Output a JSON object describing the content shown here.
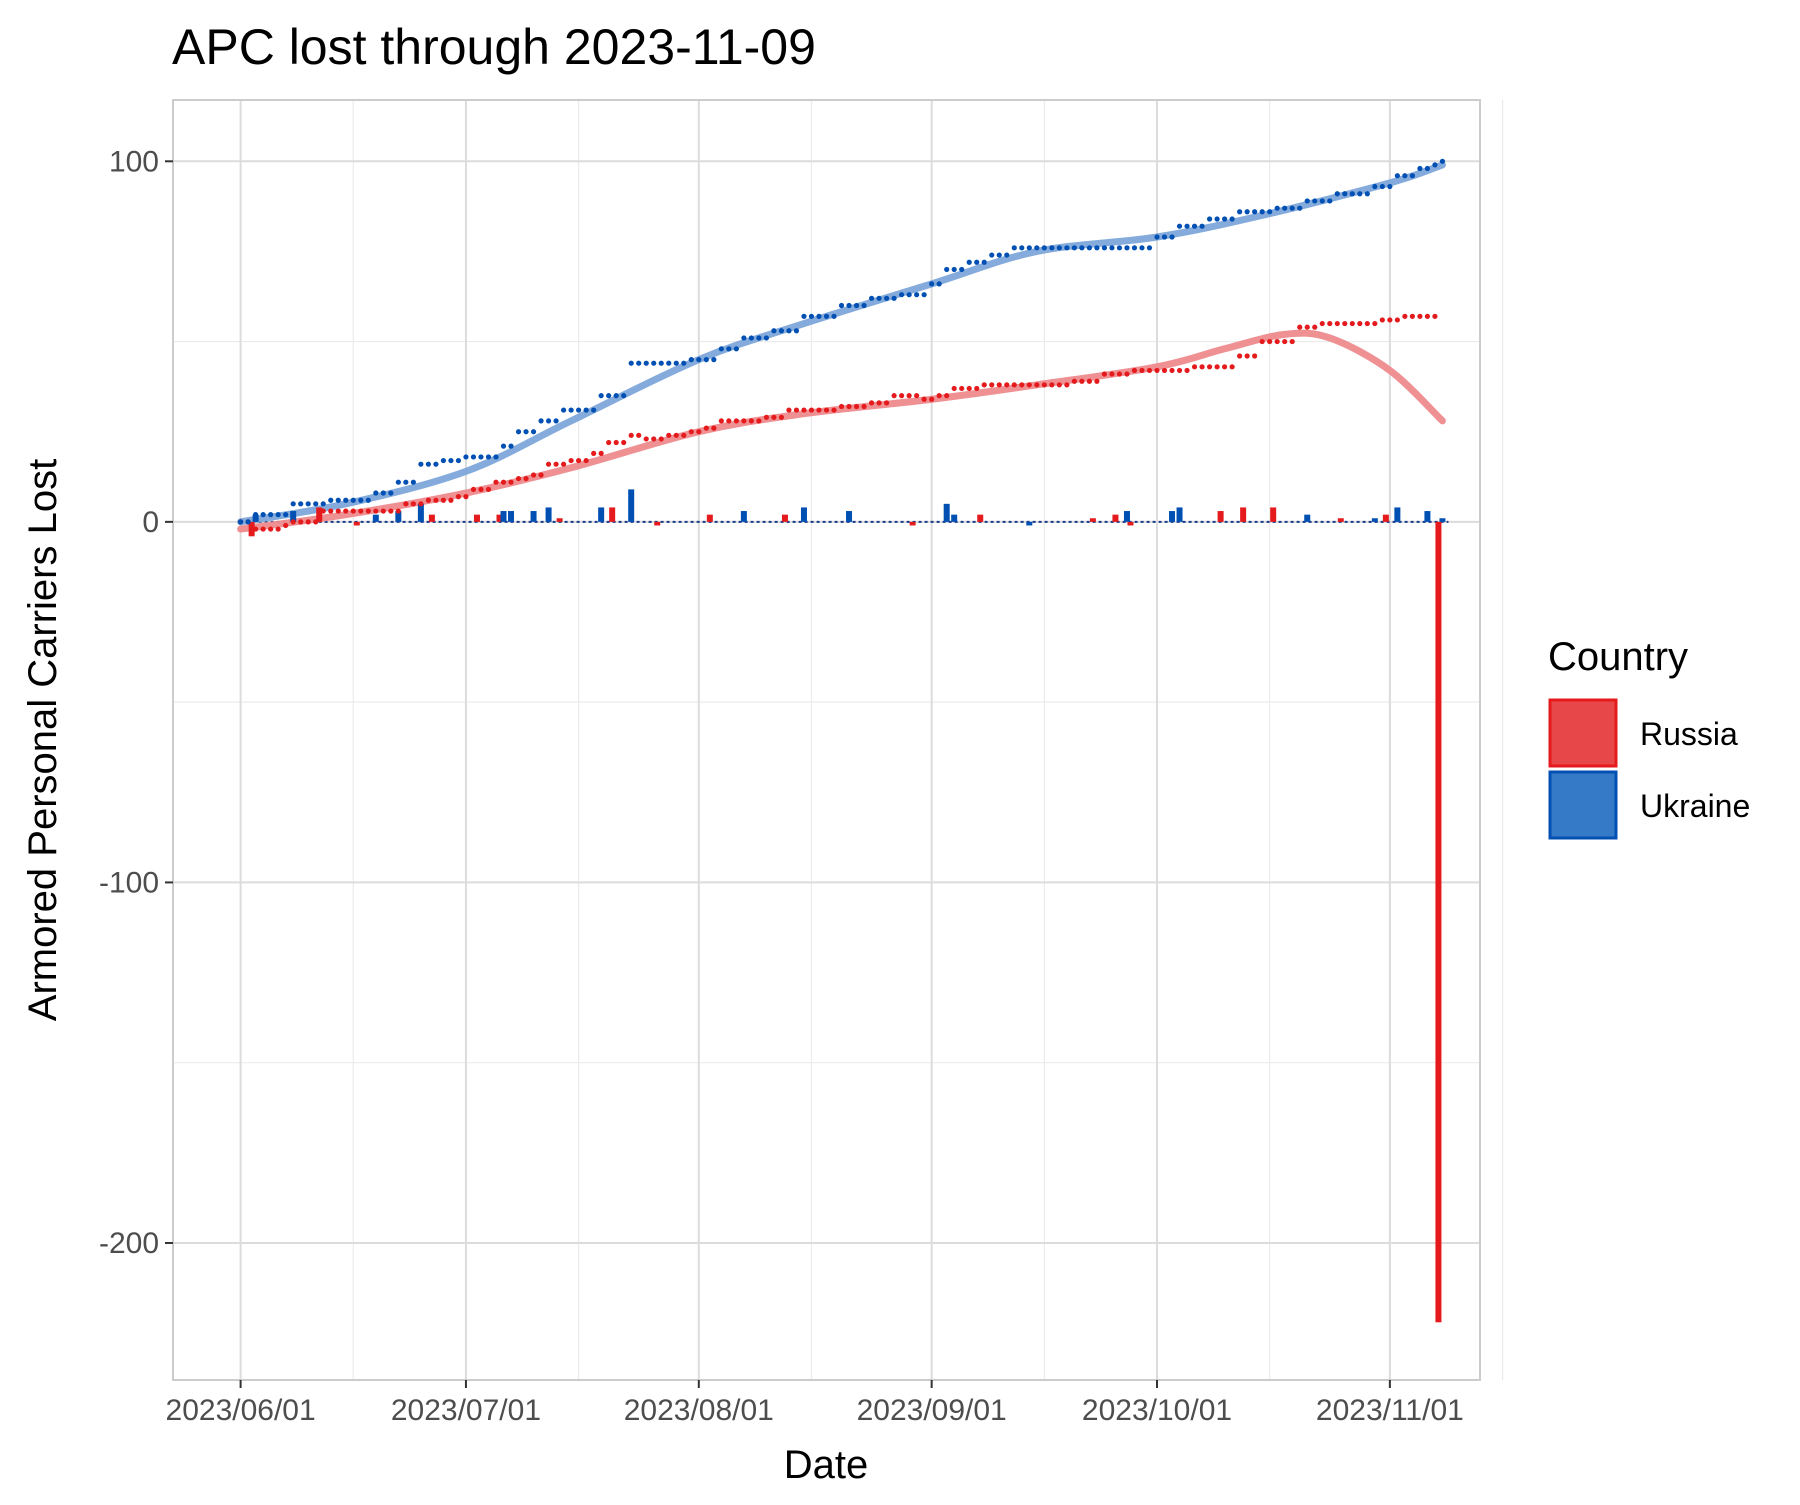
{
  "chart_data": {
    "type": "line",
    "title": "APC lost through 2023-11-09",
    "xlabel": "Date",
    "ylabel": "Armored Personal Carriers Lost",
    "x_tick_labels": [
      "2023/06/01",
      "2023/07/01",
      "2023/08/01",
      "2023/09/01",
      "2023/10/01",
      "2023/11/01"
    ],
    "y_tick_labels": [
      "100",
      "0",
      "-100",
      "-200"
    ],
    "x_range": [
      "2023-05-23",
      "2023-11-13"
    ],
    "ylim": [
      -238,
      117
    ],
    "grid": true,
    "legend": {
      "title": "Country",
      "position": "right",
      "entries": [
        {
          "name": "Russia",
          "color": "#e41a1c"
        },
        {
          "name": "Ukraine",
          "color": "#0050b4"
        }
      ]
    },
    "series": [
      {
        "name": "Russia",
        "color": "#e41a1c",
        "cumulative": [
          [
            "2023-06-01",
            0
          ],
          [
            "2023-06-03",
            -2
          ],
          [
            "2023-06-04",
            -2
          ],
          [
            "2023-06-05",
            -2
          ],
          [
            "2023-06-07",
            -1
          ],
          [
            "2023-06-08",
            0
          ],
          [
            "2023-06-12",
            3
          ],
          [
            "2023-06-15",
            3
          ],
          [
            "2023-06-20",
            3
          ],
          [
            "2023-06-23",
            5
          ],
          [
            "2023-06-26",
            6
          ],
          [
            "2023-06-30",
            7
          ],
          [
            "2023-07-02",
            9
          ],
          [
            "2023-07-04",
            9
          ],
          [
            "2023-07-05",
            11
          ],
          [
            "2023-07-08",
            12
          ],
          [
            "2023-07-10",
            13
          ],
          [
            "2023-07-12",
            16
          ],
          [
            "2023-07-15",
            17
          ],
          [
            "2023-07-18",
            19
          ],
          [
            "2023-07-20",
            22
          ],
          [
            "2023-07-23",
            24
          ],
          [
            "2023-07-25",
            23
          ],
          [
            "2023-07-28",
            24
          ],
          [
            "2023-07-31",
            25
          ],
          [
            "2023-08-02",
            26
          ],
          [
            "2023-08-04",
            28
          ],
          [
            "2023-08-07",
            28
          ],
          [
            "2023-08-10",
            29
          ],
          [
            "2023-08-13",
            31
          ],
          [
            "2023-08-16",
            31
          ],
          [
            "2023-08-20",
            32
          ],
          [
            "2023-08-24",
            33
          ],
          [
            "2023-08-27",
            35
          ],
          [
            "2023-08-31",
            34
          ],
          [
            "2023-09-02",
            35
          ],
          [
            "2023-09-04",
            37
          ],
          [
            "2023-09-08",
            38
          ],
          [
            "2023-09-12",
            38
          ],
          [
            "2023-09-16",
            38
          ],
          [
            "2023-09-20",
            39
          ],
          [
            "2023-09-24",
            41
          ],
          [
            "2023-09-28",
            42
          ],
          [
            "2023-10-03",
            42
          ],
          [
            "2023-10-06",
            43
          ],
          [
            "2023-10-09",
            43
          ],
          [
            "2023-10-12",
            46
          ],
          [
            "2023-10-15",
            50
          ],
          [
            "2023-10-18",
            50
          ],
          [
            "2023-10-20",
            54
          ],
          [
            "2023-10-23",
            55
          ],
          [
            "2023-10-27",
            55
          ],
          [
            "2023-10-31",
            56
          ],
          [
            "2023-11-03",
            57
          ],
          [
            "2023-11-07",
            57
          ]
        ],
        "daily": [
          [
            "2023-06-03",
            -4
          ],
          [
            "2023-06-12",
            4
          ],
          [
            "2023-06-17",
            -1
          ],
          [
            "2023-06-27",
            2
          ],
          [
            "2023-07-03",
            2
          ],
          [
            "2023-07-06",
            2
          ],
          [
            "2023-07-14",
            1
          ],
          [
            "2023-07-21",
            4
          ],
          [
            "2023-07-27",
            -1
          ],
          [
            "2023-08-03",
            2
          ],
          [
            "2023-08-13",
            2
          ],
          [
            "2023-08-30",
            -1
          ],
          [
            "2023-09-08",
            2
          ],
          [
            "2023-09-23",
            1
          ],
          [
            "2023-09-26",
            2
          ],
          [
            "2023-09-28",
            -1
          ],
          [
            "2023-10-10",
            3
          ],
          [
            "2023-10-13",
            4
          ],
          [
            "2023-10-17",
            4
          ],
          [
            "2023-10-26",
            1
          ],
          [
            "2023-11-01",
            2
          ],
          [
            "2023-11-08",
            -222
          ]
        ],
        "smooth": [
          [
            "2023-06-01",
            -2
          ],
          [
            "2023-06-15",
            2
          ],
          [
            "2023-07-01",
            8
          ],
          [
            "2023-07-15",
            15
          ],
          [
            "2023-08-01",
            25
          ],
          [
            "2023-08-15",
            30
          ],
          [
            "2023-09-01",
            34
          ],
          [
            "2023-09-15",
            38
          ],
          [
            "2023-10-01",
            43
          ],
          [
            "2023-10-10",
            48
          ],
          [
            "2023-10-18",
            52
          ],
          [
            "2023-10-24",
            51
          ],
          [
            "2023-11-01",
            42
          ],
          [
            "2023-11-08",
            28
          ]
        ]
      },
      {
        "name": "Ukraine",
        "color": "#0050b4",
        "cumulative": [
          [
            "2023-06-01",
            0
          ],
          [
            "2023-06-03",
            2
          ],
          [
            "2023-06-06",
            2
          ],
          [
            "2023-06-08",
            5
          ],
          [
            "2023-06-10",
            5
          ],
          [
            "2023-06-13",
            6
          ],
          [
            "2023-06-16",
            6
          ],
          [
            "2023-06-19",
            8
          ],
          [
            "2023-06-22",
            11
          ],
          [
            "2023-06-25",
            16
          ],
          [
            "2023-06-28",
            17
          ],
          [
            "2023-07-01",
            18
          ],
          [
            "2023-07-04",
            18
          ],
          [
            "2023-07-06",
            21
          ],
          [
            "2023-07-08",
            25
          ],
          [
            "2023-07-11",
            28
          ],
          [
            "2023-07-14",
            31
          ],
          [
            "2023-07-19",
            35
          ],
          [
            "2023-07-23",
            44
          ],
          [
            "2023-07-27",
            44
          ],
          [
            "2023-07-31",
            45
          ],
          [
            "2023-08-04",
            48
          ],
          [
            "2023-08-07",
            51
          ],
          [
            "2023-08-11",
            53
          ],
          [
            "2023-08-15",
            57
          ],
          [
            "2023-08-20",
            60
          ],
          [
            "2023-08-24",
            62
          ],
          [
            "2023-08-28",
            63
          ],
          [
            "2023-09-01",
            66
          ],
          [
            "2023-09-03",
            70
          ],
          [
            "2023-09-06",
            72
          ],
          [
            "2023-09-09",
            74
          ],
          [
            "2023-09-12",
            76
          ],
          [
            "2023-09-15",
            76
          ],
          [
            "2023-09-20",
            76
          ],
          [
            "2023-09-27",
            76
          ],
          [
            "2023-10-01",
            79
          ],
          [
            "2023-10-04",
            82
          ],
          [
            "2023-10-08",
            84
          ],
          [
            "2023-10-12",
            86
          ],
          [
            "2023-10-17",
            87
          ],
          [
            "2023-10-21",
            89
          ],
          [
            "2023-10-25",
            91
          ],
          [
            "2023-10-30",
            93
          ],
          [
            "2023-11-02",
            96
          ],
          [
            "2023-11-05",
            98
          ],
          [
            "2023-11-07",
            99
          ],
          [
            "2023-11-08",
            100
          ]
        ],
        "daily": [
          [
            "2023-06-03",
            2
          ],
          [
            "2023-06-08",
            3
          ],
          [
            "2023-06-19",
            2
          ],
          [
            "2023-06-22",
            3
          ],
          [
            "2023-06-25",
            5
          ],
          [
            "2023-07-06",
            3
          ],
          [
            "2023-07-07",
            3
          ],
          [
            "2023-07-10",
            3
          ],
          [
            "2023-07-12",
            4
          ],
          [
            "2023-07-19",
            4
          ],
          [
            "2023-07-23",
            9
          ],
          [
            "2023-08-07",
            3
          ],
          [
            "2023-08-15",
            4
          ],
          [
            "2023-08-21",
            3
          ],
          [
            "2023-09-03",
            5
          ],
          [
            "2023-09-04",
            2
          ],
          [
            "2023-09-14",
            -1
          ],
          [
            "2023-09-27",
            3
          ],
          [
            "2023-10-03",
            3
          ],
          [
            "2023-10-04",
            4
          ],
          [
            "2023-10-21",
            2
          ],
          [
            "2023-10-30",
            1
          ],
          [
            "2023-11-02",
            4
          ],
          [
            "2023-11-06",
            3
          ],
          [
            "2023-11-08",
            1
          ]
        ],
        "smooth": [
          [
            "2023-06-01",
            0
          ],
          [
            "2023-06-15",
            5
          ],
          [
            "2023-07-01",
            14
          ],
          [
            "2023-07-15",
            28
          ],
          [
            "2023-08-01",
            45
          ],
          [
            "2023-08-15",
            55
          ],
          [
            "2023-09-01",
            66
          ],
          [
            "2023-09-15",
            75
          ],
          [
            "2023-10-01",
            79
          ],
          [
            "2023-10-15",
            85
          ],
          [
            "2023-11-01",
            94
          ],
          [
            "2023-11-08",
            99
          ]
        ]
      }
    ]
  }
}
